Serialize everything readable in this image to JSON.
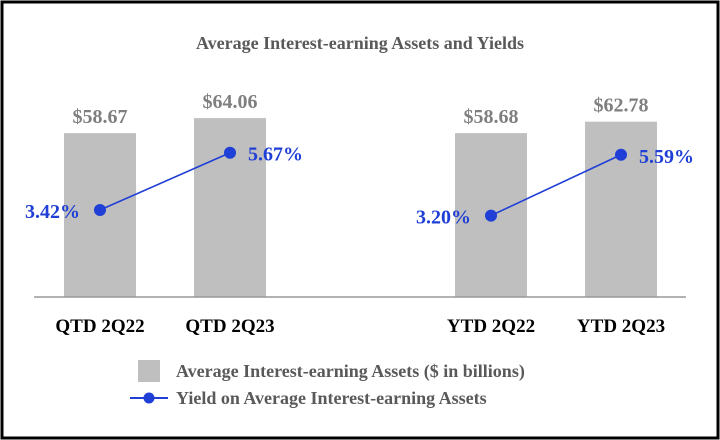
{
  "chart_data": {
    "type": "bar",
    "title": "Average Interest-earning Assets and Yields",
    "categories": [
      "QTD 2Q22",
      "QTD 2Q23",
      "YTD 2Q22",
      "YTD 2Q23"
    ],
    "series": [
      {
        "name": "Average Interest-earning Assets ($ in billions)",
        "type": "bar",
        "values": [
          58.67,
          64.06,
          58.68,
          62.78
        ],
        "labels": [
          "$58.67",
          "$64.06",
          "$58.68",
          "$62.78"
        ],
        "color": "#bfbfbf"
      },
      {
        "name": "Yield on Average Interest-earning Assets",
        "type": "line",
        "groups": [
          [
            0,
            1
          ],
          [
            2,
            3
          ]
        ],
        "values": [
          3.42,
          5.67,
          3.2,
          5.59
        ],
        "labels": [
          "3.42%",
          "5.67%",
          "3.20%",
          "5.59%"
        ],
        "color": "#1f3fd6"
      }
    ],
    "ylim": [
      0,
      82
    ],
    "y2lim": [
      0,
      9
    ],
    "legend_position": "bottom",
    "grid": false,
    "label_color": "#7f7f7f",
    "axis_color": "#999999"
  }
}
